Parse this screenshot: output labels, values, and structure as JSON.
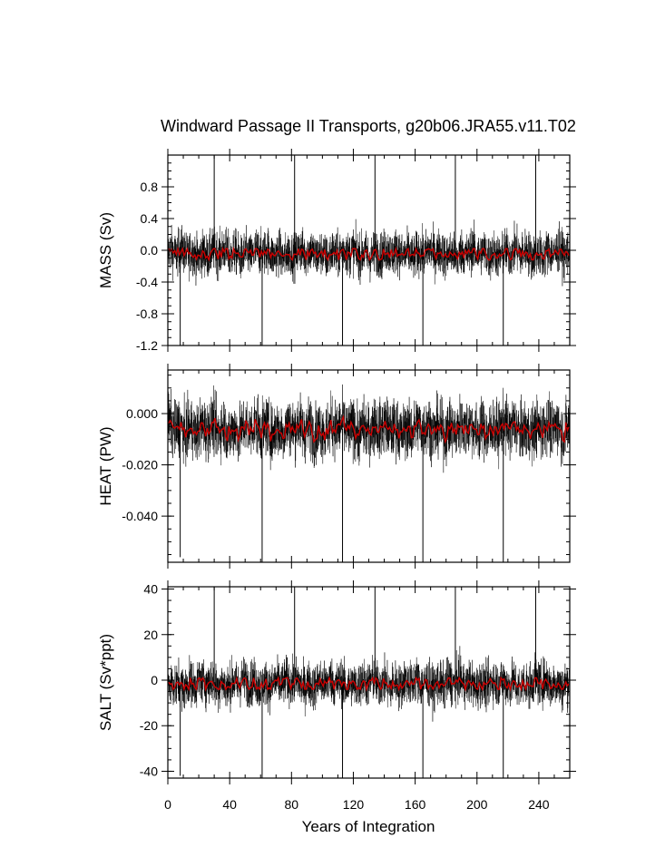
{
  "chart_data": {
    "type": "line",
    "title": "Windward Passage II Transports, g20b06.JRA55.v11.T02",
    "xlabel": "Years of Integration",
    "xlim": [
      0,
      260
    ],
    "xticks": [
      0,
      40,
      80,
      120,
      160,
      200,
      240
    ],
    "xtick_labels": [
      "0",
      "40",
      "80",
      "120",
      "160",
      "200",
      "240"
    ],
    "legend": "none",
    "grid": false,
    "colors": {
      "monthly": "#000000",
      "annual_mean": "#cc0000"
    },
    "panels": [
      {
        "ylabel": "MASS (Sv)",
        "ylim": [
          -1.2,
          1.2
        ],
        "yticks": [
          -1.2,
          -0.8,
          -0.4,
          0.0,
          0.4,
          0.8
        ],
        "ytick_labels": [
          "-1.2",
          "-0.8",
          "-0.4",
          "0.0",
          "0.4",
          "0.8"
        ],
        "mean": -0.04,
        "noise_amplitude": 0.2,
        "annual_mean_range": [
          -0.12,
          0.02
        ],
        "spikes_up": [
          {
            "x": 30,
            "y": 1.2
          },
          {
            "x": 82,
            "y": 1.2
          },
          {
            "x": 134,
            "y": 1.2
          },
          {
            "x": 186,
            "y": 1.2
          },
          {
            "x": 238,
            "y": 1.2
          }
        ],
        "spikes_down": [
          {
            "x": 8,
            "y": -1.2
          },
          {
            "x": 61,
            "y": -1.2
          },
          {
            "x": 113,
            "y": -1.2
          },
          {
            "x": 165,
            "y": -1.2
          },
          {
            "x": 217,
            "y": -1.2
          }
        ]
      },
      {
        "ylabel": "HEAT (PW)",
        "ylim": [
          -0.058,
          0.017
        ],
        "yticks": [
          -0.04,
          -0.02,
          0.0
        ],
        "ytick_labels": [
          "-0.040",
          "-0.020",
          "0.000"
        ],
        "mean": -0.006,
        "noise_amplitude": 0.008,
        "annual_mean_range": [
          -0.011,
          -0.001
        ],
        "spikes_up": [],
        "spikes_down": [
          {
            "x": 8,
            "y": -0.056
          },
          {
            "x": 61,
            "y": -0.058
          },
          {
            "x": 113,
            "y": -0.058
          },
          {
            "x": 165,
            "y": -0.058
          },
          {
            "x": 217,
            "y": -0.058
          }
        ]
      },
      {
        "ylabel": "SALT (Sv*ppt)",
        "ylim": [
          -43,
          41
        ],
        "yticks": [
          -40,
          -20,
          0,
          20,
          40
        ],
        "ytick_labels": [
          "-40",
          "-20",
          "0",
          "20",
          "40"
        ],
        "mean": -1.5,
        "noise_amplitude": 7,
        "annual_mean_range": [
          -4,
          1
        ],
        "spikes_up": [
          {
            "x": 30,
            "y": 41
          },
          {
            "x": 82,
            "y": 41
          },
          {
            "x": 134,
            "y": 41
          },
          {
            "x": 186,
            "y": 41
          },
          {
            "x": 238,
            "y": 41
          }
        ],
        "spikes_down": [
          {
            "x": 8,
            "y": -42
          },
          {
            "x": 61,
            "y": -43
          },
          {
            "x": 113,
            "y": -43
          },
          {
            "x": 165,
            "y": -43
          },
          {
            "x": 217,
            "y": -43
          }
        ]
      }
    ]
  }
}
